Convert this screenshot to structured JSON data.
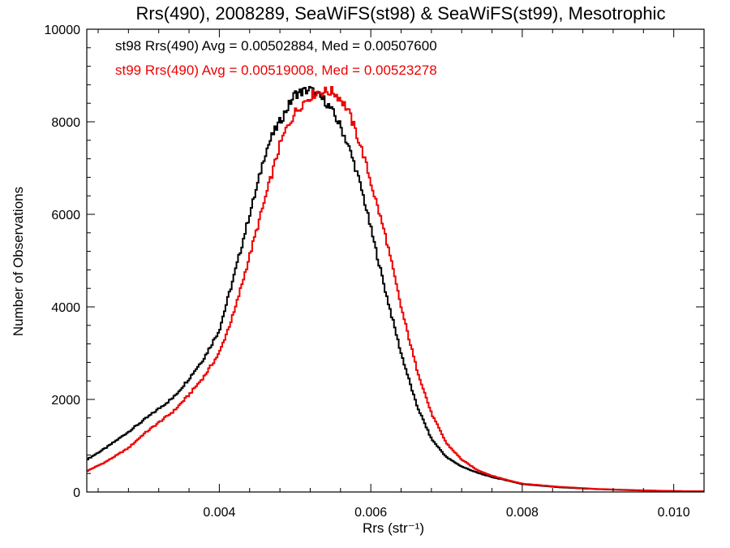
{
  "chart_data": {
    "type": "line",
    "title": "Rrs(490), 2008289, SeaWiFS(st98) & SeaWiFS(st99), Mesotrophic",
    "xlabel": "Rrs (str⁻¹)",
    "ylabel": "Number of Observations",
    "xlim": [
      0.00225,
      0.0104
    ],
    "ylim": [
      0,
      10000
    ],
    "x_ticks": [
      0.004,
      0.006,
      0.008,
      0.01
    ],
    "x_tick_labels": [
      "0.004",
      "0.006",
      "0.008",
      "0.010"
    ],
    "y_ticks": [
      0,
      2000,
      4000,
      6000,
      8000,
      10000
    ],
    "y_tick_labels": [
      "0",
      "2000",
      "4000",
      "6000",
      "8000",
      "10000"
    ],
    "grid": false,
    "annotations": [
      {
        "text": "st98 Rrs(490) Avg = 0.00502884, Med = 0.00507600",
        "color": "#000000"
      },
      {
        "text": "st99 Rrs(490) Avg = 0.00519008, Med = 0.00523278",
        "color": "#ee0000"
      }
    ],
    "series": [
      {
        "name": "st98",
        "color": "#000000",
        "x": [
          0.00225,
          0.0025,
          0.0028,
          0.003,
          0.0032,
          0.0034,
          0.0036,
          0.0038,
          0.004,
          0.0042,
          0.0044,
          0.0045,
          0.0046,
          0.0047,
          0.0048,
          0.0049,
          0.005,
          0.0051,
          0.0052,
          0.0053,
          0.0054,
          0.0055,
          0.0056,
          0.0057,
          0.0058,
          0.0059,
          0.006,
          0.0062,
          0.0064,
          0.0066,
          0.0068,
          0.007,
          0.0072,
          0.0074,
          0.0076,
          0.0078,
          0.008,
          0.0085,
          0.009,
          0.0095,
          0.01,
          0.0104
        ],
        "y": [
          700,
          950,
          1300,
          1550,
          1800,
          2050,
          2450,
          2900,
          3500,
          4700,
          6000,
          6600,
          7300,
          7700,
          8000,
          8300,
          8600,
          8650,
          8700,
          8550,
          8450,
          8200,
          7900,
          7500,
          7000,
          6400,
          5700,
          4300,
          3000,
          1900,
          1150,
          750,
          550,
          420,
          320,
          250,
          170,
          100,
          60,
          35,
          20,
          15
        ]
      },
      {
        "name": "st99",
        "color": "#ee0000",
        "x": [
          0.00225,
          0.0025,
          0.0028,
          0.003,
          0.0032,
          0.0034,
          0.0036,
          0.0038,
          0.004,
          0.0042,
          0.0044,
          0.0045,
          0.0046,
          0.0047,
          0.0048,
          0.0049,
          0.005,
          0.0051,
          0.0052,
          0.0053,
          0.0054,
          0.0055,
          0.0056,
          0.0057,
          0.0058,
          0.0059,
          0.006,
          0.0062,
          0.0064,
          0.0066,
          0.0068,
          0.007,
          0.0072,
          0.0074,
          0.0076,
          0.0078,
          0.008,
          0.0085,
          0.009,
          0.0095,
          0.01,
          0.0104
        ],
        "y": [
          450,
          650,
          950,
          1250,
          1500,
          1750,
          2100,
          2500,
          3000,
          3900,
          5100,
          5700,
          6300,
          6900,
          7500,
          7900,
          8200,
          8400,
          8550,
          8650,
          8650,
          8650,
          8500,
          8250,
          7800,
          7300,
          6700,
          5500,
          4000,
          2700,
          1700,
          1050,
          700,
          480,
          350,
          260,
          180,
          110,
          65,
          40,
          20,
          15
        ]
      }
    ]
  }
}
